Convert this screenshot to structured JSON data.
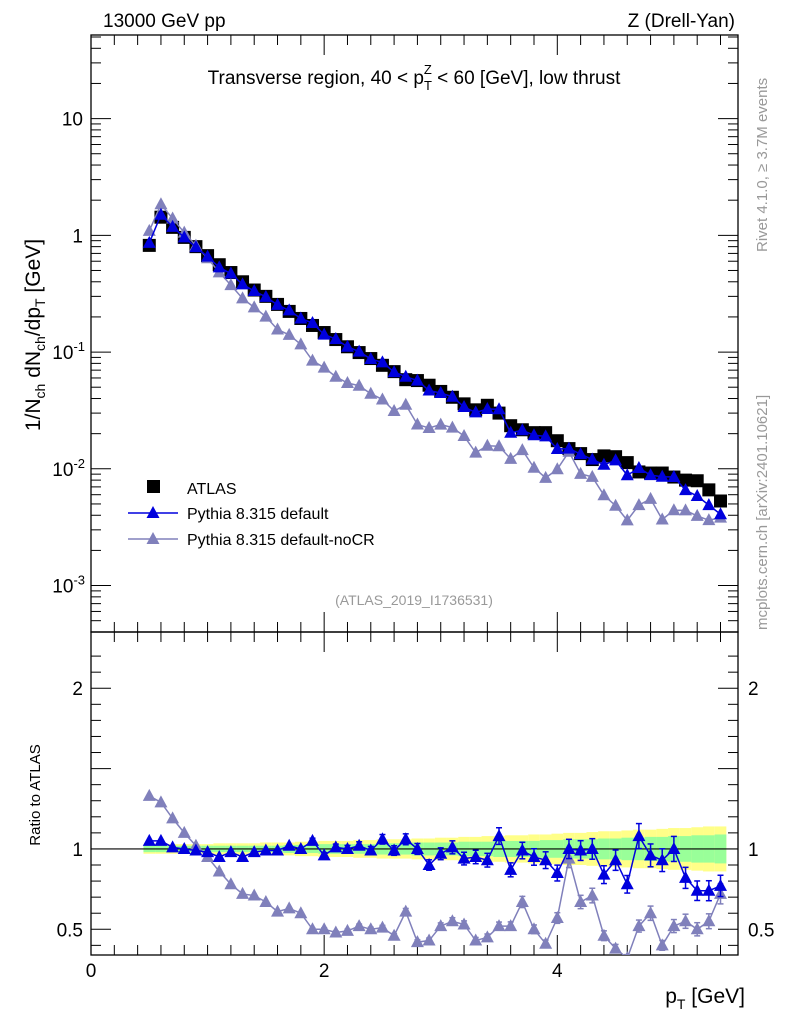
{
  "header": {
    "energy": "13000 GeV pp",
    "process": "Z (Drell-Yan)"
  },
  "side": {
    "rivet": "Rivet 4.1.0, ≥ 3.7M events",
    "mcplots": "mcplots.cern.ch [arXiv:2401.10621]"
  },
  "chart_data": {
    "type": "scatter",
    "title": "Transverse region, 40 < p_T^Z < 60 [GeV], low thrust",
    "ylabel": "1/N_ch dN_ch/dp_T [GeV]",
    "xlabel": "p_T [GeV]",
    "ratio_ylabel": "Ratio to ATLAS",
    "analysis": "(ATLAS_2019_I1736531)",
    "xlim": [
      0,
      5.55
    ],
    "ylim": [
      0.0004,
      52
    ],
    "yscale": "log",
    "ratio_ylim": [
      0.34,
      2.35
    ],
    "x_ticks": [
      "0",
      "2",
      "4"
    ],
    "y_ticks": [
      {
        "v": 10,
        "l": "10"
      },
      {
        "v": 1,
        "l": "1"
      },
      {
        "v": 0.1,
        "l": "10^-1"
      },
      {
        "v": 0.01,
        "l": "10^-2"
      },
      {
        "v": 0.001,
        "l": "10^-3"
      }
    ],
    "ratio_ticks": [
      {
        "v": 2,
        "l": "2"
      },
      {
        "v": 1,
        "l": "1"
      },
      {
        "v": 0.5,
        "l": "0.5"
      }
    ],
    "legend_position": "lower-left",
    "x": [
      0.5,
      0.6,
      0.7,
      0.8,
      0.9,
      1.0,
      1.1,
      1.2,
      1.3,
      1.4,
      1.5,
      1.6,
      1.7,
      1.8,
      1.9,
      2.0,
      2.1,
      2.2,
      2.3,
      2.4,
      2.5,
      2.6,
      2.7,
      2.8,
      2.9,
      3.0,
      3.1,
      3.2,
      3.3,
      3.4,
      3.5,
      3.6,
      3.7,
      3.8,
      3.9,
      4.0,
      4.1,
      4.2,
      4.3,
      4.4,
      4.5,
      4.6,
      4.7,
      4.8,
      4.9,
      5.0,
      5.1,
      5.2,
      5.3,
      5.4
    ],
    "atlas": {
      "name": "ATLAS",
      "color": "#000000",
      "values": [
        0.82,
        1.43,
        1.17,
        0.96,
        0.8,
        0.67,
        0.56,
        0.48,
        0.4,
        0.34,
        0.3,
        0.256,
        0.223,
        0.194,
        0.169,
        0.147,
        0.128,
        0.111,
        0.099,
        0.088,
        0.077,
        0.068,
        0.058,
        0.057,
        0.052,
        0.046,
        0.041,
        0.036,
        0.032,
        0.035,
        0.03,
        0.0234,
        0.0216,
        0.0204,
        0.0204,
        0.0174,
        0.0149,
        0.0135,
        0.012,
        0.0129,
        0.0127,
        0.0113,
        0.0094,
        0.0092,
        0.0092,
        0.0085,
        0.008,
        0.0079,
        0.0066,
        0.0053
      ],
      "band_inner": [
        0.02,
        0.02,
        0.02,
        0.02,
        0.02,
        0.02,
        0.02,
        0.02,
        0.02,
        0.02,
        0.02,
        0.02,
        0.025,
        0.025,
        0.025,
        0.03,
        0.03,
        0.03,
        0.03,
        0.03,
        0.035,
        0.035,
        0.035,
        0.04,
        0.04,
        0.04,
        0.04,
        0.045,
        0.045,
        0.045,
        0.05,
        0.05,
        0.05,
        0.05,
        0.055,
        0.055,
        0.06,
        0.06,
        0.06,
        0.065,
        0.065,
        0.07,
        0.07,
        0.075,
        0.075,
        0.08,
        0.08,
        0.085,
        0.085,
        0.09
      ],
      "band_outer": [
        0.03,
        0.03,
        0.03,
        0.03,
        0.03,
        0.03,
        0.035,
        0.035,
        0.035,
        0.035,
        0.04,
        0.04,
        0.04,
        0.045,
        0.045,
        0.05,
        0.05,
        0.05,
        0.055,
        0.055,
        0.06,
        0.06,
        0.06,
        0.065,
        0.065,
        0.07,
        0.07,
        0.075,
        0.075,
        0.08,
        0.08,
        0.085,
        0.085,
        0.09,
        0.09,
        0.095,
        0.1,
        0.1,
        0.105,
        0.11,
        0.11,
        0.115,
        0.12,
        0.12,
        0.125,
        0.13,
        0.13,
        0.135,
        0.14,
        0.14
      ]
    },
    "series": [
      {
        "name": "Pythia 8.315 default",
        "color": "#0000dd",
        "ratio": [
          1.05,
          1.05,
          1.01,
          1.0,
          0.99,
          0.98,
          0.95,
          0.98,
          0.95,
          0.98,
          0.99,
          0.99,
          1.02,
          1.0,
          1.05,
          0.96,
          1.01,
          1.0,
          1.02,
          0.99,
          1.06,
          0.99,
          1.06,
          1.0,
          0.9,
          0.97,
          1.01,
          0.94,
          0.95,
          0.93,
          1.08,
          0.87,
          0.99,
          0.95,
          0.93,
          0.85,
          1.0,
          0.99,
          1.0,
          0.84,
          0.93,
          0.78,
          1.08,
          0.96,
          0.93,
          1.0,
          0.82,
          0.74,
          0.74,
          0.77
        ]
      },
      {
        "name": "Pythia 8.315 default-noCR",
        "color": "#8080bb",
        "ratio": [
          1.33,
          1.29,
          1.19,
          1.1,
          1.02,
          0.95,
          0.86,
          0.78,
          0.72,
          0.71,
          0.67,
          0.61,
          0.63,
          0.6,
          0.5,
          0.5,
          0.48,
          0.49,
          0.52,
          0.5,
          0.51,
          0.46,
          0.61,
          0.42,
          0.43,
          0.52,
          0.55,
          0.53,
          0.43,
          0.45,
          0.52,
          0.52,
          0.67,
          0.5,
          0.41,
          0.57,
          0.94,
          0.67,
          0.71,
          0.46,
          0.38,
          0.32,
          0.52,
          0.6,
          0.4,
          0.52,
          0.55,
          0.5,
          0.55,
          0.72
        ]
      }
    ],
    "mc_rel_err": [
      0.005,
      0.005,
      0.005,
      0.005,
      0.005,
      0.006,
      0.006,
      0.007,
      0.008,
      0.009,
      0.01,
      0.011,
      0.012,
      0.014,
      0.016,
      0.018,
      0.02,
      0.022,
      0.024,
      0.026,
      0.028,
      0.03,
      0.032,
      0.034,
      0.036,
      0.038,
      0.04,
      0.042,
      0.044,
      0.046,
      0.048,
      0.05,
      0.052,
      0.054,
      0.056,
      0.058,
      0.06,
      0.062,
      0.064,
      0.066,
      0.068,
      0.07,
      0.072,
      0.074,
      0.076,
      0.078,
      0.08,
      0.082,
      0.084,
      0.086
    ]
  }
}
